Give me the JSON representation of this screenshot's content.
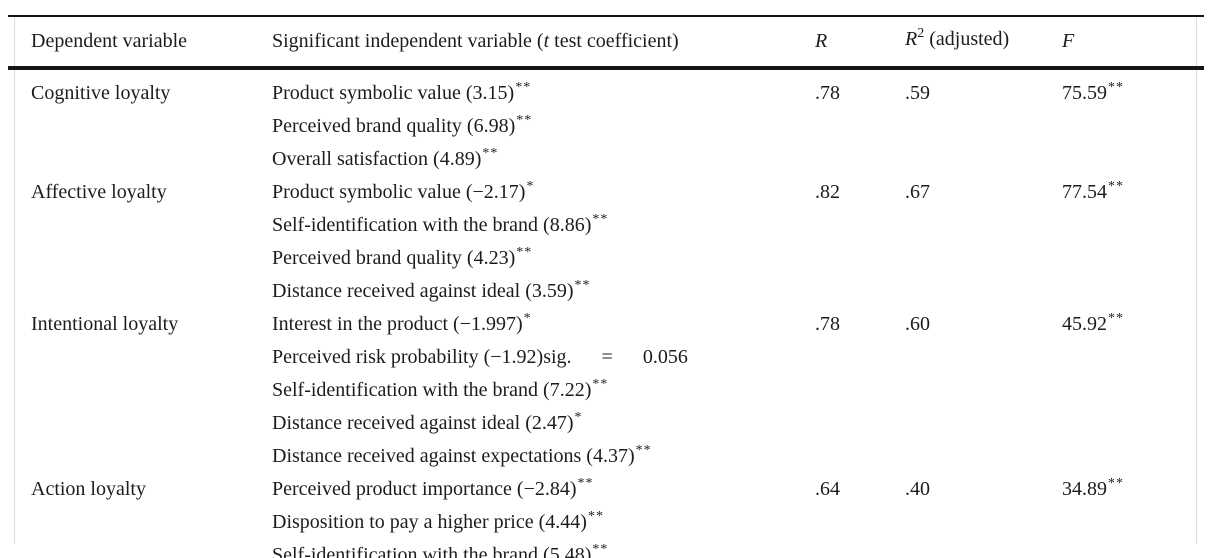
{
  "page": {
    "background": "#ffffff",
    "rule_color": "#161616",
    "frame_color": "#dedede",
    "text_color": "#1c1c1c"
  },
  "table": {
    "header": {
      "col1": "Dependent variable",
      "col2_pre": "Significant independent variable (",
      "col2_italic_t": "t",
      "col2_post": " test coefficient)",
      "col3_R": "R",
      "col4_R": "R",
      "col4_sup": "2",
      "col4_rest": " (adjusted)",
      "col5_F": "F"
    },
    "rows": [
      {
        "dependent": "Cognitive loyalty",
        "r": ".78",
        "r2": ".59",
        "f": "75.59",
        "f_sig": "**",
        "predictors": [
          {
            "text": "Product symbolic value (3.15)",
            "sig": "**"
          },
          {
            "text": "Perceived brand quality (6.98)",
            "sig": "**"
          },
          {
            "text": "Overall satisfaction (4.89)",
            "sig": "**"
          }
        ]
      },
      {
        "dependent": "Affective loyalty",
        "r": ".82",
        "r2": ".67",
        "f": "77.54",
        "f_sig": "**",
        "predictors": [
          {
            "text": "Product symbolic value (−2.17)",
            "sig": "*"
          },
          {
            "text": "Self-identification with the brand (8.86)",
            "sig": "**"
          },
          {
            "text": "Perceived brand quality (4.23)",
            "sig": "**"
          },
          {
            "text": "Distance received against ideal (3.59)",
            "sig": "**"
          }
        ]
      },
      {
        "dependent": "Intentional loyalty",
        "r": ".78",
        "r2": ".60",
        "f": "45.92",
        "f_sig": "**",
        "predictors": [
          {
            "text": "Interest in the product (−1.997)",
            "sig": "*"
          },
          {
            "text": "Perceived risk probability (−1.92)sig.  =  0.056",
            "sig": ""
          },
          {
            "text": "Self-identification with the brand (7.22)",
            "sig": "**"
          },
          {
            "text": "Distance received against ideal (2.47)",
            "sig": "*"
          },
          {
            "text": "Distance received against expectations (4.37)",
            "sig": "**"
          }
        ]
      },
      {
        "dependent": "Action loyalty",
        "r": ".64",
        "r2": ".40",
        "f": "34.89",
        "f_sig": "**",
        "predictors": [
          {
            "text": "Perceived product importance (−2.84)",
            "sig": "**"
          },
          {
            "text": "Disposition to pay a higher price (4.44)",
            "sig": "**"
          },
          {
            "text": "Self-identification with the brand (5.48)",
            "sig": "**"
          }
        ]
      }
    ]
  }
}
